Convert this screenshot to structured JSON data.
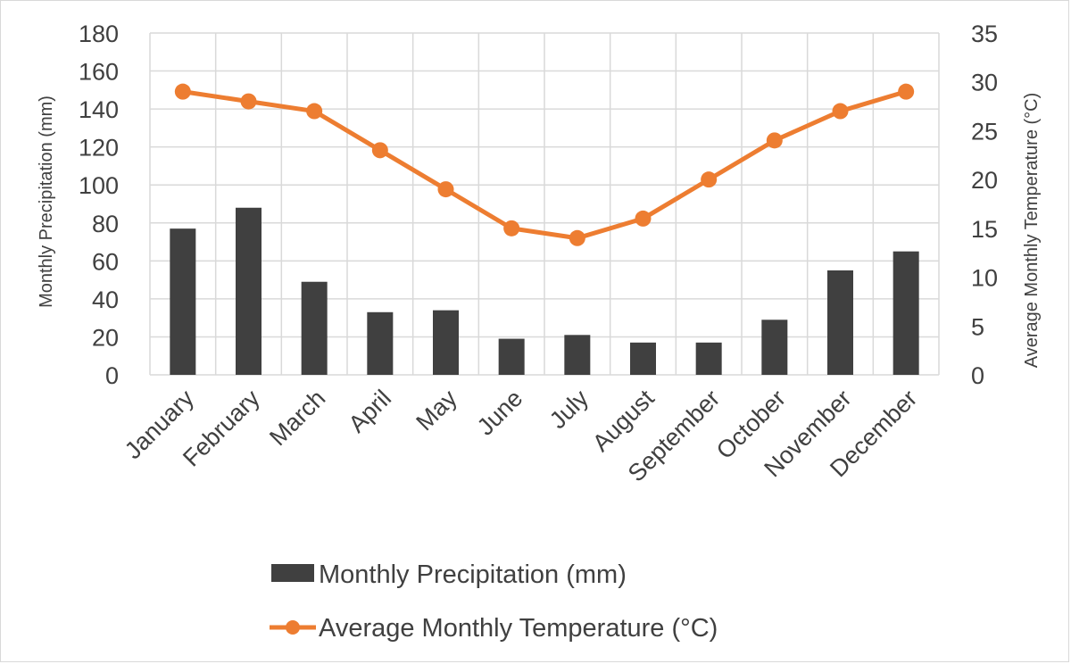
{
  "chart_data": {
    "type": "bar",
    "categories": [
      "January",
      "February",
      "March",
      "April",
      "May",
      "June",
      "July",
      "August",
      "September",
      "October",
      "November",
      "December"
    ],
    "series": [
      {
        "name": "Monthly Precipitation  (mm)",
        "type": "bar",
        "axis": "left",
        "values": [
          77,
          88,
          49,
          33,
          34,
          19,
          21,
          17,
          17,
          29,
          55,
          65
        ],
        "color": "#404040"
      },
      {
        "name": "Average Monthly  Temperature (°C)",
        "type": "line",
        "axis": "right",
        "values": [
          29,
          28,
          27,
          23,
          19,
          15,
          14,
          16,
          20,
          24,
          27,
          29
        ],
        "color": "#ed7d31"
      }
    ],
    "ylabel": "Monthly Precipitation  (mm)",
    "y2label": "Average Monthly  Temperature (°C)",
    "ylim": [
      0,
      180
    ],
    "y2lim": [
      0,
      35
    ],
    "yticks": [
      "0",
      "20",
      "40",
      "60",
      "80",
      "100",
      "120",
      "140",
      "160",
      "180"
    ],
    "y2ticks": [
      "0",
      "5",
      "10",
      "15",
      "20",
      "25",
      "30",
      "35"
    ],
    "grid": true,
    "legend_position": "bottom"
  }
}
